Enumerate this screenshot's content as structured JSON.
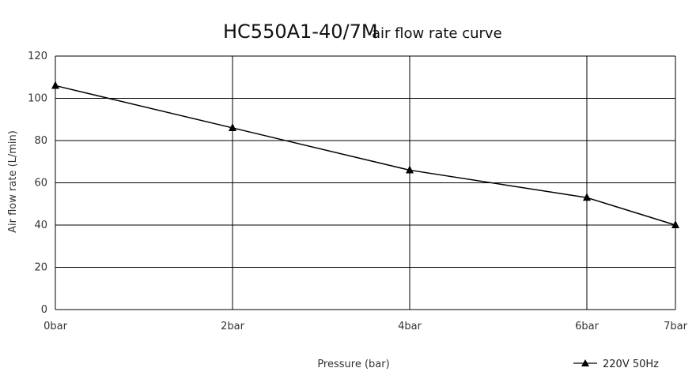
{
  "chart_data": {
    "type": "line",
    "title": "HC550A1-40/7M",
    "subtitle": "air flow rate curve",
    "xlabel": "Pressure (bar)",
    "ylabel": "Air flow rate (L/min)",
    "categories": [
      "0bar",
      "2bar",
      "4bar",
      "6bar",
      "7bar"
    ],
    "yticks": [
      "0",
      "20",
      "40",
      "60",
      "80",
      "100",
      "120"
    ],
    "ylim": [
      0,
      120
    ],
    "grid": true,
    "legend_position": "bottom-right",
    "series": [
      {
        "name": "220V 50Hz",
        "marker": "triangle",
        "color": "#000000",
        "values": [
          106,
          86,
          66,
          53,
          40
        ]
      }
    ]
  }
}
